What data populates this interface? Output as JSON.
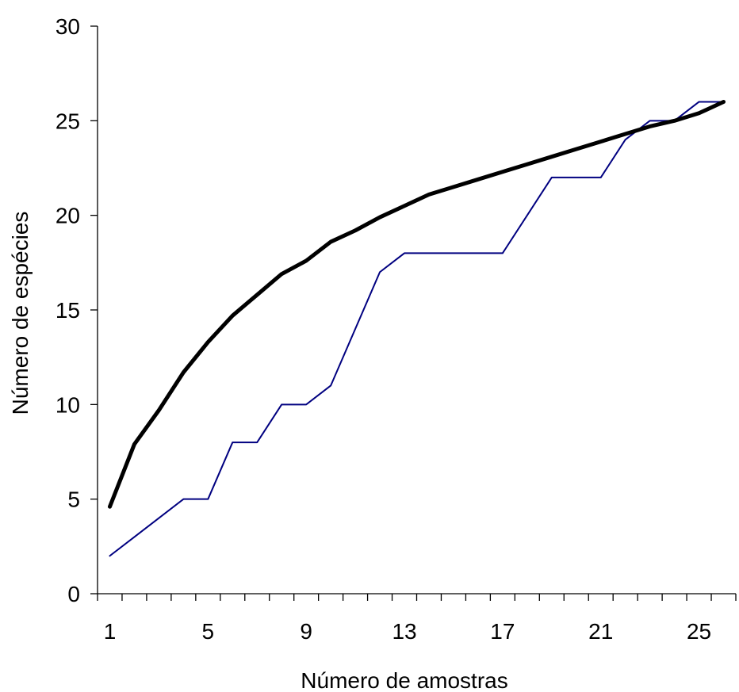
{
  "chart_data": {
    "type": "line",
    "title": "",
    "xlabel": "Número de amostras",
    "ylabel": "Número de espécies",
    "x": [
      1,
      2,
      3,
      4,
      5,
      6,
      7,
      8,
      9,
      10,
      11,
      12,
      13,
      14,
      15,
      16,
      17,
      18,
      19,
      20,
      21,
      22,
      23,
      24,
      25,
      26
    ],
    "xlim": [
      0.5,
      26.5
    ],
    "ylim": [
      0,
      30
    ],
    "x_tick_labels": [
      "1",
      "5",
      "9",
      "13",
      "17",
      "21",
      "25"
    ],
    "x_tick_values": [
      1,
      5,
      9,
      13,
      17,
      21,
      25
    ],
    "y_ticks": [
      0,
      5,
      10,
      15,
      20,
      25,
      30
    ],
    "grid": false,
    "legend": "none",
    "series": [
      {
        "color": "#000000",
        "style": "thick",
        "values": [
          4.6,
          7.9,
          9.7,
          11.7,
          13.3,
          14.7,
          15.8,
          16.9,
          17.6,
          18.6,
          19.2,
          19.9,
          20.5,
          21.1,
          21.5,
          21.9,
          22.3,
          22.7,
          23.1,
          23.5,
          23.9,
          24.3,
          24.7,
          25.0,
          25.4,
          26.0
        ]
      },
      {
        "color": "#000080",
        "style": "thin",
        "values": [
          2,
          3,
          4,
          5,
          5,
          8,
          8,
          10,
          10,
          11,
          14,
          17,
          18,
          18,
          18,
          18,
          18,
          20,
          22,
          22,
          22,
          24,
          25,
          25,
          26,
          26
        ]
      }
    ]
  }
}
